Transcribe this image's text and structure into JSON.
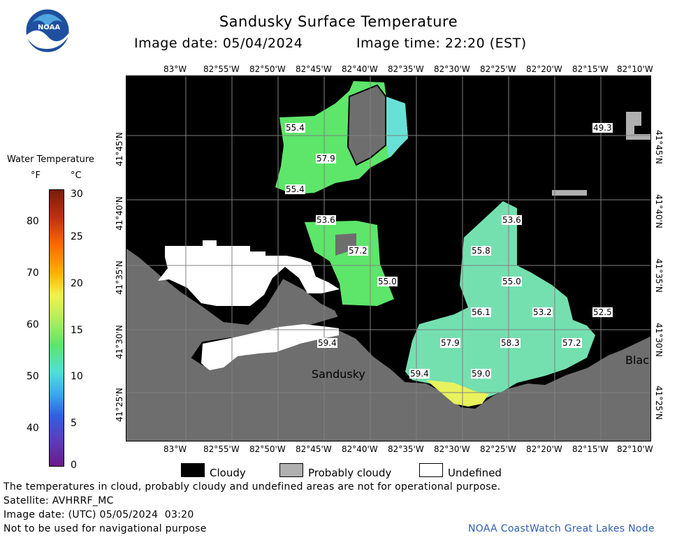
{
  "header": {
    "title": "Sandusky Surface Temperature",
    "image_date_label": "Image date: 05/04/2024",
    "image_time_label": "Image time: 22:20 (EST)"
  },
  "logo": {
    "text": "NOAA"
  },
  "colorbar": {
    "title": "Water Temperature",
    "unit_f": "°F",
    "unit_c": "°C",
    "fahrenheit_ticks": [
      "80",
      "70",
      "60",
      "50",
      "40"
    ],
    "celsius_ticks": [
      "30",
      "25",
      "20",
      "15",
      "10",
      "5",
      "0"
    ]
  },
  "map": {
    "lon_ticks": [
      "83°W",
      "82°55'W",
      "82°50'W",
      "82°45'W",
      "82°40'W",
      "82°35'W",
      "82°30'W",
      "82°25'W",
      "82°20'W",
      "82°15'W",
      "82°10'W"
    ],
    "lat_ticks": [
      "41°45'N",
      "41°40'N",
      "41°35'N",
      "41°30'N",
      "41°25'N"
    ],
    "place_labels": [
      "Sandusky",
      "Blac"
    ],
    "temperature_labels": [
      "55.4",
      "57.9",
      "55.4",
      "53.6",
      "57.2",
      "55.0",
      "59.4",
      "59.4",
      "57.9",
      "59.0",
      "53.6",
      "55.8",
      "55.0",
      "56.1",
      "53.2",
      "58.3",
      "57.2",
      "52.5",
      "49.3"
    ]
  },
  "legend": {
    "cloudy": "Cloudy",
    "probably_cloudy": "Probably cloudy",
    "undefined": "Undefined"
  },
  "footer": {
    "disclaimer": "The temperatures in cloud, probably cloudy and undefined areas are not for operational purpose.",
    "satellite": "Satellite: AVHRRF_MC",
    "utc_date": "Image date: (UTC) 05/05/2024  03:20",
    "navigation": "Not to be used for navigational purpose",
    "credit": "NOAA CoastWatch Great Lakes Node"
  },
  "colors": {
    "cloudy": "#000000",
    "probably_cloudy": "#b0b0b0",
    "undefined": "#ffffff",
    "land": "#6e6e6e",
    "credit_text": "#2f5fb4"
  }
}
